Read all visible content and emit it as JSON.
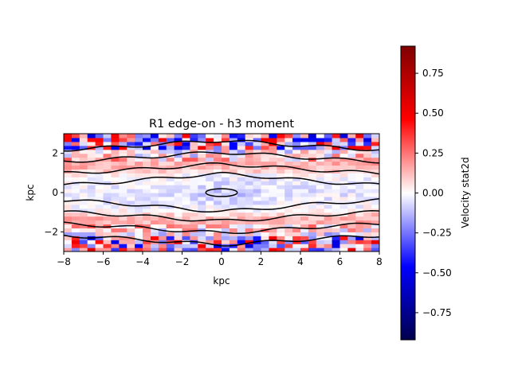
{
  "chart_data": [
    {
      "type": "heatmap",
      "title": "R1 edge-on - h3 moment",
      "xlabel": "kpc",
      "ylabel": "kpc",
      "xlim": [
        -8,
        8
      ],
      "ylim": [
        -3,
        3
      ],
      "x_ticks": [
        -8,
        -6,
        -4,
        -2,
        0,
        2,
        4,
        6,
        8
      ],
      "y_ticks": [
        -2,
        0,
        2
      ],
      "x_tick_labels": [
        "−8",
        "−6",
        "−4",
        "−2",
        "0",
        "2",
        "4",
        "6",
        "8"
      ],
      "y_tick_labels": [
        "−2",
        "0",
        "2"
      ],
      "grid": false,
      "colormap": "seismic",
      "grid_size": [
        40,
        30
      ],
      "pattern": "mostly pale values near zero; faint blue band near mid-plane (|y| < 1 kpc); reddish band just above and below the mid-plane; noisy strong red and blue pixels near the top and bottom edges",
      "contours": {
        "color": "#000000",
        "levels": [
          {
            "name": "inner",
            "x_range": [
              -0.8,
              0.8
            ],
            "half_height": 0.2
          },
          {
            "name": "c2",
            "x_range": [
              -8,
              8
            ],
            "half_height": 0.7
          },
          {
            "name": "c3",
            "x_range": [
              -8,
              8
            ],
            "half_height": 1.3
          },
          {
            "name": "c4",
            "x_range": [
              -8,
              8
            ],
            "half_height": 1.9
          },
          {
            "name": "c5",
            "x_range": [
              -8,
              8
            ],
            "half_height": 2.5
          }
        ]
      }
    },
    {
      "type": "colorbar",
      "label": "Velocity stat2d",
      "colormap": "seismic",
      "vmin": -0.92,
      "vmax": 0.92,
      "ticks": [
        -0.75,
        -0.5,
        -0.25,
        0.0,
        0.25,
        0.5,
        0.75
      ],
      "tick_labels": [
        "−0.75",
        "−0.50",
        "−0.25",
        "0.00",
        "0.25",
        "0.50",
        "0.75"
      ],
      "colors": {
        "low": "#00004c",
        "mid": "#ffffff",
        "high": "#800000"
      }
    }
  ]
}
